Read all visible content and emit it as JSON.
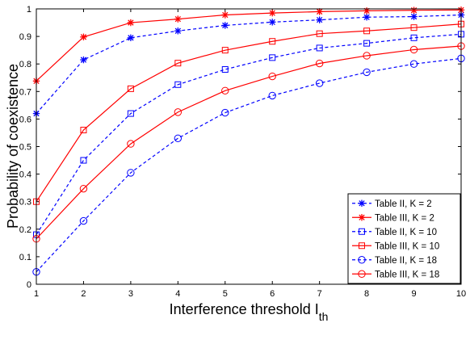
{
  "chart_data": {
    "type": "line",
    "title": "",
    "xlabel": "Interference threshold I",
    "xlabel_subscript": "th",
    "ylabel": "Probability of coexistence",
    "xlim": [
      1,
      10
    ],
    "ylim": [
      0,
      1
    ],
    "x_ticks": [
      "1",
      "2",
      "3",
      "4",
      "5",
      "6",
      "7",
      "8",
      "9",
      "10"
    ],
    "y_ticks": [
      "0",
      "0.1",
      "0.2",
      "0.3",
      "0.4",
      "0.5",
      "0.6",
      "0.7",
      "0.8",
      "0.9",
      "1"
    ],
    "grid": false,
    "legend_position": "bottom-right",
    "x": [
      1,
      2,
      3,
      4,
      5,
      6,
      7,
      8,
      9,
      10
    ],
    "series": [
      {
        "name": "Table II, K = 2",
        "color": "#0000ff",
        "line_style": "dashed",
        "marker": "asterisk",
        "values": [
          0.62,
          0.815,
          0.895,
          0.92,
          0.94,
          0.952,
          0.96,
          0.97,
          0.972,
          0.978
        ]
      },
      {
        "name": "Table III, K = 2",
        "color": "#ff0000",
        "line_style": "solid",
        "marker": "asterisk",
        "values": [
          0.738,
          0.898,
          0.95,
          0.963,
          0.978,
          0.985,
          0.99,
          0.993,
          0.995,
          0.996
        ]
      },
      {
        "name": "Table II, K = 10",
        "color": "#0000ff",
        "line_style": "dashed",
        "marker": "square",
        "values": [
          0.18,
          0.45,
          0.62,
          0.725,
          0.78,
          0.823,
          0.858,
          0.875,
          0.895,
          0.908
        ]
      },
      {
        "name": "Table III, K = 10",
        "color": "#ff0000",
        "line_style": "solid",
        "marker": "square",
        "values": [
          0.3,
          0.56,
          0.71,
          0.803,
          0.85,
          0.882,
          0.91,
          0.92,
          0.932,
          0.945
        ]
      },
      {
        "name": "Table II, K = 18",
        "color": "#0000ff",
        "line_style": "dashed",
        "marker": "circle",
        "values": [
          0.045,
          0.23,
          0.405,
          0.53,
          0.623,
          0.685,
          0.73,
          0.77,
          0.8,
          0.82
        ]
      },
      {
        "name": "Table III, K = 18",
        "color": "#ff0000",
        "line_style": "solid",
        "marker": "circle",
        "values": [
          0.165,
          0.347,
          0.51,
          0.625,
          0.703,
          0.755,
          0.802,
          0.83,
          0.852,
          0.865
        ]
      }
    ]
  }
}
